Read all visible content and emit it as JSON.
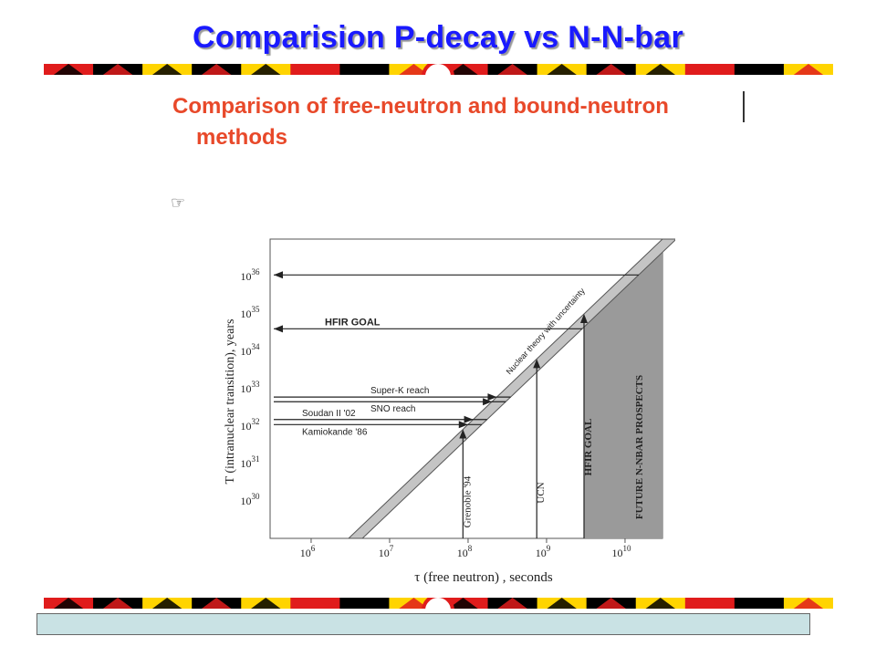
{
  "slide": {
    "title": "Comparision P-decay vs N-N-bar",
    "heading_line1": "Comparison of free-neutron and bound-neutron",
    "heading_line2": "methods",
    "bullet_icon": "pointing-hand-icon",
    "colors": {
      "title": "#1a1aff",
      "heading": "#e8492a",
      "flag_red": "#e01c1c",
      "flag_yellow": "#ffd400",
      "flag_black": "#000000",
      "footer_box": "#c9e2e4"
    }
  },
  "chart_data": {
    "type": "line",
    "xlabel": "τ (free neutron) , seconds",
    "ylabel": "T (intranuclear transition), years",
    "x_scale": "log",
    "y_scale": "log",
    "x_ticks": [
      "10^6",
      "10^7",
      "10^8",
      "10^9",
      "10^10"
    ],
    "x_tick_values": [
      1000000.0,
      10000000.0,
      100000000.0,
      1000000000.0,
      10000000000.0
    ],
    "y_ticks": [
      "10^30",
      "10^31",
      "10^32",
      "10^33",
      "10^34",
      "10^35",
      "10^36"
    ],
    "y_tick_values": [
      1e+30,
      1e+31,
      1e+32,
      1e+33,
      1e+34,
      1e+35,
      1e+36
    ],
    "xlim": [
      300000,
      30000000000
    ],
    "ylim": [
      1e+29,
      1e+37
    ],
    "band": {
      "label": "Nuclear theory with uncertainty",
      "lower_edge": [
        [
          3000000,
          1e+29
        ],
        [
          30000000000,
          1e+37
        ]
      ],
      "upper_edge": [
        [
          4500000,
          1e+29
        ],
        [
          45000000000,
          1e+37
        ]
      ]
    },
    "horizontal_limits": [
      {
        "label": "",
        "y": 1.1e+36
      },
      {
        "label": "HFIR GOAL",
        "y": 4e+34
      },
      {
        "label": "Super-K reach",
        "y": 6e+32
      },
      {
        "label": "SNO reach",
        "y": 4.5e+32
      },
      {
        "label": "Soudan II '02",
        "y": 1.5e+32
      },
      {
        "label": "Kamiokande '86",
        "y": 1.1e+32
      }
    ],
    "vertical_limits": [
      {
        "label": "Grenoble '94",
        "x": 86000000
      },
      {
        "label": "UCN",
        "x": 750000000
      },
      {
        "label": "HFIR GOAL",
        "x": 3000000000
      }
    ],
    "shaded_region": {
      "label": "FUTURE N-NBAR PROSPECTS",
      "x_from": 3000000000,
      "x_to": 30000000000
    }
  }
}
